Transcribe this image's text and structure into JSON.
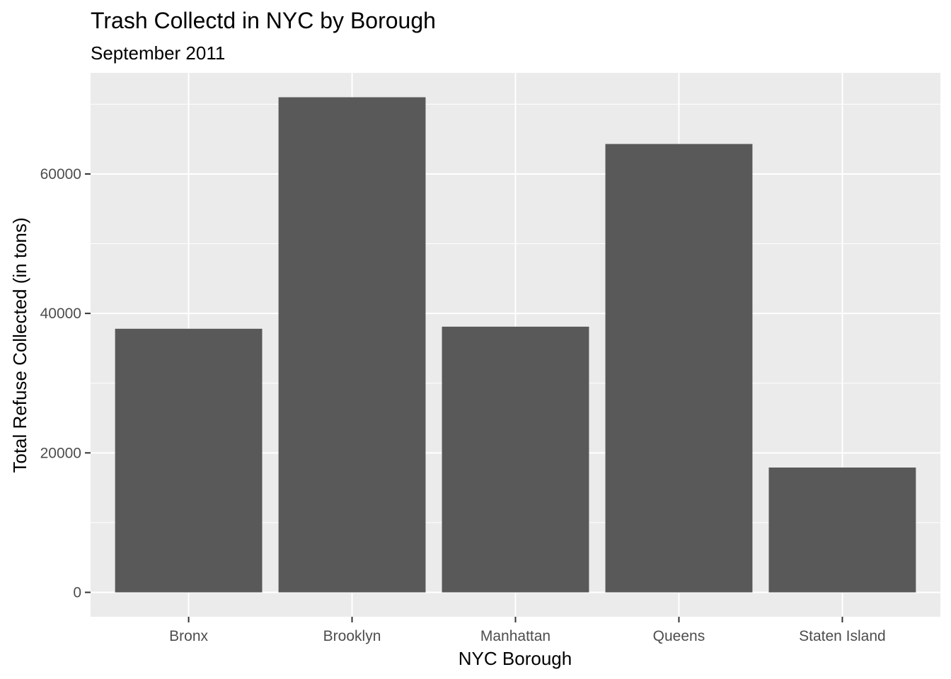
{
  "chart_data": {
    "type": "bar",
    "title": "Trash Collectd in NYC by Borough",
    "subtitle": "September 2011",
    "xlabel": "NYC Borough",
    "ylabel": "Total Refuse Collected (in tons)",
    "categories": [
      "Bronx",
      "Brooklyn",
      "Manhattan",
      "Queens",
      "Staten Island"
    ],
    "values": [
      37800,
      71000,
      38100,
      64300,
      17900
    ],
    "ylim": [
      -3500,
      74500
    ],
    "yticks": [
      0,
      20000,
      40000,
      60000
    ],
    "ytick_labels": [
      "0",
      "20000",
      "40000",
      "60000"
    ],
    "grid": true,
    "colors": {
      "panel_background": "#ebebeb",
      "grid": "#ffffff",
      "bar": "#595959",
      "tick_mark": "#333333"
    }
  }
}
